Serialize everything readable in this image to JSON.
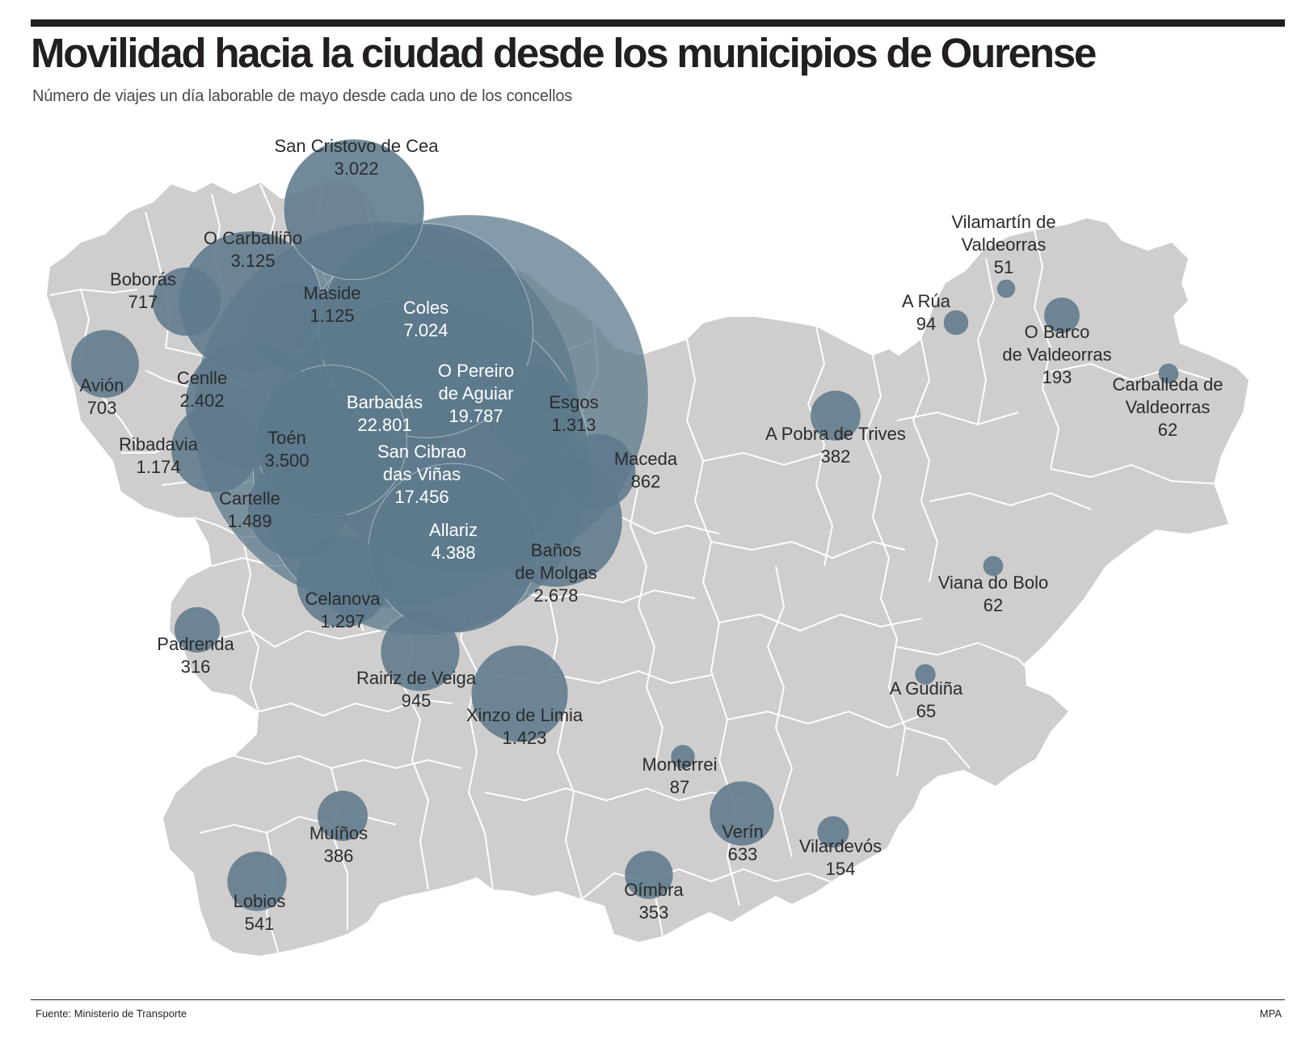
{
  "title": "Movilidad hacia la ciudad desde los municipios de Ourense",
  "subtitle": "Número de viajes un día laborable de mayo desde cada uno de los concellos",
  "footer": {
    "source": "Fuente: Ministerio de Transporte",
    "credit": "MPA"
  },
  "colors": {
    "land": "#d0cecc",
    "bubble": "#5d7a8c",
    "city": "#1e3644",
    "background": "#ffffff"
  },
  "municipalities": [
    {
      "name": "San Cristovo de Cea",
      "trips": "3.022",
      "value": 3022
    },
    {
      "name": "O Carballiño",
      "trips": "3.125",
      "value": 3125
    },
    {
      "name": "Boborás",
      "trips": "717",
      "value": 717
    },
    {
      "name": "Maside",
      "trips": "1.125",
      "value": 1125
    },
    {
      "name": "Coles",
      "trips": "7.024",
      "value": 7024
    },
    {
      "name": "Avión",
      "trips": "703",
      "value": 703
    },
    {
      "name": "Cenlle",
      "trips": "2.402",
      "value": 2402
    },
    {
      "name": "O Pereiro de Aguiar",
      "trips": "19.787",
      "value": 19787
    },
    {
      "name": "Barbadás",
      "trips": "22.801",
      "value": 22801
    },
    {
      "name": "Esgos",
      "trips": "1.313",
      "value": 1313
    },
    {
      "name": "Ribadavia",
      "trips": "1.174",
      "value": 1174
    },
    {
      "name": "Toén",
      "trips": "3.500",
      "value": 3500
    },
    {
      "name": "San Cibrao das Viñas",
      "trips": "17.456",
      "value": 17456
    },
    {
      "name": "Maceda",
      "trips": "862",
      "value": 862
    },
    {
      "name": "Cartelle",
      "trips": "1.489",
      "value": 1489
    },
    {
      "name": "Allariz",
      "trips": "4.388",
      "value": 4388
    },
    {
      "name": "Baños de Molgas",
      "trips": "2.678",
      "value": 2678
    },
    {
      "name": "Celanova",
      "trips": "1.297",
      "value": 1297
    },
    {
      "name": "Padrenda",
      "trips": "316",
      "value": 316
    },
    {
      "name": "Rairiz de Veiga",
      "trips": "945",
      "value": 945
    },
    {
      "name": "Xinzo de Limia",
      "trips": "1.423",
      "value": 1423
    },
    {
      "name": "Monterrei",
      "trips": "87",
      "value": 87
    },
    {
      "name": "Verín",
      "trips": "633",
      "value": 633
    },
    {
      "name": "Vilardevós",
      "trips": "154",
      "value": 154
    },
    {
      "name": "Muíños",
      "trips": "386",
      "value": 386
    },
    {
      "name": "Lobios",
      "trips": "541",
      "value": 541
    },
    {
      "name": "Oímbra",
      "trips": "353",
      "value": 353
    },
    {
      "name": "Vilamartín de Valdeorras",
      "trips": "51",
      "value": 51
    },
    {
      "name": "A Rúa",
      "trips": "94",
      "value": 94
    },
    {
      "name": "O Barco de Valdeorras",
      "trips": "193",
      "value": 193
    },
    {
      "name": "Carballeda de Valdeorras",
      "trips": "62",
      "value": 62
    },
    {
      "name": "A Pobra de Trives",
      "trips": "382",
      "value": 382
    },
    {
      "name": "Viana do Bolo",
      "trips": "62",
      "value": 62
    },
    {
      "name": "A Gudiña",
      "trips": "65",
      "value": 65
    }
  ]
}
